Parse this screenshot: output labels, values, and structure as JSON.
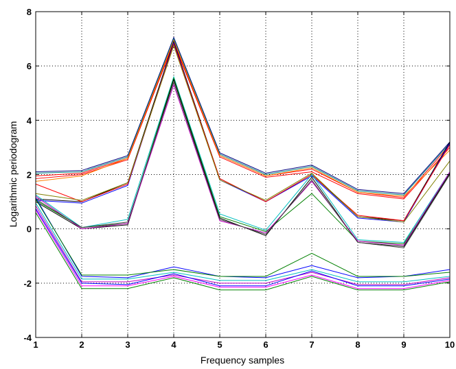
{
  "chart_data": {
    "type": "line",
    "title": "",
    "xlabel": "Frequency samples",
    "ylabel": "Logarithmic periodogram",
    "xlim": [
      1,
      10
    ],
    "ylim": [
      -4,
      8
    ],
    "xticks": [
      1,
      2,
      3,
      4,
      5,
      6,
      7,
      8,
      9,
      10
    ],
    "yticks": [
      -4,
      -2,
      0,
      2,
      4,
      6,
      8
    ],
    "grid": true,
    "legend": "none",
    "x": [
      1,
      2,
      3,
      4,
      5,
      6,
      7,
      8,
      9,
      10
    ],
    "series": [
      {
        "color": "#000080",
        "values": [
          2.1,
          2.15,
          2.7,
          7.05,
          2.8,
          2.05,
          2.35,
          1.45,
          1.3,
          3.2
        ]
      },
      {
        "color": "#008080",
        "values": [
          2.05,
          2.1,
          2.65,
          7.0,
          2.75,
          2.0,
          2.3,
          1.4,
          1.25,
          3.15
        ]
      },
      {
        "color": "#ff0000",
        "values": [
          1.95,
          2.05,
          2.6,
          6.9,
          2.7,
          1.95,
          2.2,
          1.35,
          1.15,
          3.1
        ]
      },
      {
        "color": "#ff0000",
        "values": [
          1.85,
          2.0,
          2.55,
          6.85,
          2.65,
          1.9,
          2.1,
          1.3,
          1.1,
          3.0
        ]
      },
      {
        "color": "#ff8000",
        "values": [
          1.75,
          1.95,
          2.6,
          6.95,
          2.7,
          1.95,
          2.25,
          1.35,
          1.2,
          2.9
        ]
      },
      {
        "color": "#000000",
        "values": [
          1.1,
          1.0,
          1.7,
          6.9,
          1.85,
          1.0,
          2.0,
          0.45,
          0.3,
          3.2
        ]
      },
      {
        "color": "#0000ff",
        "values": [
          1.05,
          0.95,
          1.6,
          6.85,
          1.8,
          1.0,
          1.95,
          0.4,
          0.25,
          3.15
        ]
      },
      {
        "color": "#ff0000",
        "values": [
          1.65,
          1.0,
          1.65,
          6.8,
          1.85,
          1.0,
          2.0,
          0.5,
          0.3,
          3.1
        ]
      },
      {
        "color": "#808000",
        "values": [
          1.3,
          1.05,
          1.7,
          6.75,
          1.8,
          1.05,
          2.05,
          0.45,
          0.25,
          2.5
        ]
      },
      {
        "color": "#00bfbf",
        "values": [
          1.25,
          0.05,
          0.35,
          5.6,
          0.55,
          -0.05,
          2.0,
          -0.4,
          -0.5,
          2.1
        ]
      },
      {
        "color": "#008000",
        "values": [
          1.05,
          0.05,
          0.2,
          5.55,
          0.45,
          -0.1,
          1.3,
          -0.45,
          -0.55,
          2.0
        ]
      },
      {
        "color": "#000000",
        "values": [
          1.0,
          0.0,
          0.15,
          5.5,
          0.4,
          -0.25,
          1.9,
          -0.5,
          -0.65,
          2.05
        ]
      },
      {
        "color": "#bf00bf",
        "values": [
          1.2,
          0.0,
          0.2,
          5.3,
          0.3,
          -0.15,
          1.75,
          -0.45,
          -0.6,
          2.1
        ]
      },
      {
        "color": "#404040",
        "values": [
          1.1,
          0.05,
          0.25,
          5.4,
          0.35,
          -0.2,
          1.8,
          -0.5,
          -0.7,
          2.0
        ]
      },
      {
        "color": "#0000ff",
        "values": [
          1.15,
          -1.75,
          -1.8,
          -1.4,
          -1.75,
          -1.8,
          -1.35,
          -1.8,
          -1.75,
          -1.5
        ]
      },
      {
        "color": "#008000",
        "values": [
          1.1,
          -1.7,
          -1.7,
          -1.5,
          -1.75,
          -1.75,
          -0.9,
          -1.75,
          -1.75,
          -1.6
        ]
      },
      {
        "color": "#00bfbf",
        "values": [
          0.95,
          -1.85,
          -1.85,
          -1.6,
          -1.9,
          -1.9,
          -1.5,
          -1.95,
          -1.95,
          -1.75
        ]
      },
      {
        "color": "#bf00bf",
        "values": [
          0.85,
          -1.95,
          -1.95,
          -1.7,
          -2.0,
          -2.0,
          -1.6,
          -2.05,
          -2.05,
          -1.8
        ]
      },
      {
        "color": "#0000ff",
        "values": [
          0.75,
          -2.0,
          -2.05,
          -1.65,
          -2.1,
          -2.1,
          -1.55,
          -2.1,
          -2.1,
          -1.85
        ]
      },
      {
        "color": "#ff00ff",
        "values": [
          0.7,
          -2.1,
          -2.1,
          -1.75,
          -2.15,
          -2.15,
          -1.7,
          -2.2,
          -2.2,
          -1.9
        ]
      },
      {
        "color": "#008000",
        "values": [
          0.6,
          -2.2,
          -2.2,
          -1.8,
          -2.25,
          -2.25,
          -1.75,
          -2.25,
          -2.25,
          -1.95
        ]
      }
    ]
  }
}
